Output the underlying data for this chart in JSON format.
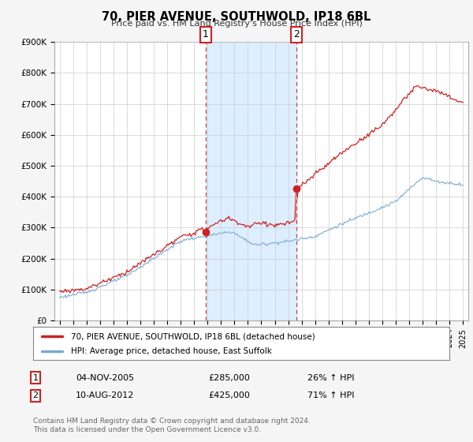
{
  "title": "70, PIER AVENUE, SOUTHWOLD, IP18 6BL",
  "subtitle": "Price paid vs. HM Land Registry's House Price Index (HPI)",
  "legend_line1": "70, PIER AVENUE, SOUTHWOLD, IP18 6BL (detached house)",
  "legend_line2": "HPI: Average price, detached house, East Suffolk",
  "note": "Contains HM Land Registry data © Crown copyright and database right 2024.\nThis data is licensed under the Open Government Licence v3.0.",
  "marker1_label": "1",
  "marker1_date": "04-NOV-2005",
  "marker1_price": "£285,000",
  "marker1_hpi": "26% ↑ HPI",
  "marker2_label": "2",
  "marker2_date": "10-AUG-2012",
  "marker2_price": "£425,000",
  "marker2_hpi": "71% ↑ HPI",
  "hpi_color": "#7aaad0",
  "price_color": "#cc2222",
  "shade_color": "#ddeeff",
  "background_color": "#f5f5f5",
  "plot_bg_color": "#ffffff",
  "ylim": [
    0,
    900000
  ],
  "yticks": [
    0,
    100000,
    200000,
    300000,
    400000,
    500000,
    600000,
    700000,
    800000,
    900000
  ],
  "ytick_labels": [
    "£0",
    "£100K",
    "£200K",
    "£300K",
    "£400K",
    "£500K",
    "£600K",
    "£700K",
    "£800K",
    "£900K"
  ],
  "marker1_x": 2005.85,
  "marker1_y": 285000,
  "marker2_x": 2012.61,
  "marker2_y": 425000,
  "marker2_prev_y": 320000,
  "vline1_x": 2005.85,
  "vline2_x": 2012.61,
  "xlim_left": 1994.6,
  "xlim_right": 2025.4
}
